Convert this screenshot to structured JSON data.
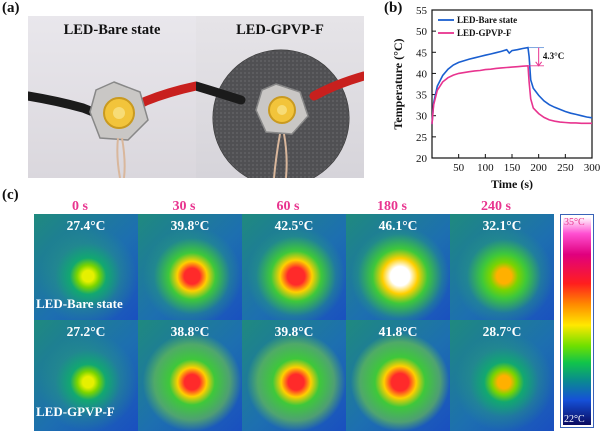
{
  "panel_a": {
    "label": "(a)",
    "left_title": "LED-Bare state",
    "right_title": "LED-GPVP-F"
  },
  "panel_b": {
    "label": "(b)",
    "annotation": "4.3°C"
  },
  "panel_c": {
    "label": "(c)",
    "times": [
      "0 s",
      "30 s",
      "60 s",
      "180 s",
      "240 s"
    ],
    "rows": [
      {
        "name": "LED-Bare state",
        "temps": [
          "27.4°C",
          "39.8°C",
          "42.5°C",
          "46.1°C",
          "32.1°C"
        ]
      },
      {
        "name": "LED-GPVP-F",
        "temps": [
          "27.2°C",
          "38.8°C",
          "39.8°C",
          "41.8°C",
          "28.7°C"
        ]
      }
    ],
    "colorbar": {
      "max": "35°C",
      "min": "22°C"
    }
  },
  "chart_data": {
    "type": "line",
    "xlabel": "Time (s)",
    "ylabel": "Temperature (°C)",
    "xlim": [
      0,
      300
    ],
    "ylim": [
      20,
      55
    ],
    "xticks": [
      50,
      100,
      150,
      200,
      250,
      300
    ],
    "yticks": [
      20,
      25,
      30,
      35,
      40,
      45,
      50,
      55
    ],
    "legend_position": "top-left",
    "series": [
      {
        "name": "LED-Bare state",
        "color": "#1a5fd0",
        "x": [
          0,
          3,
          10,
          20,
          30,
          40,
          50,
          60,
          70,
          80,
          90,
          100,
          110,
          120,
          130,
          140,
          145,
          150,
          160,
          170,
          180,
          182,
          185,
          190,
          200,
          210,
          220,
          230,
          240,
          250,
          260,
          270,
          280,
          290,
          300
        ],
        "y": [
          28,
          33,
          37,
          39.5,
          41,
          42,
          42.6,
          43,
          43.4,
          43.7,
          44,
          44.3,
          44.6,
          44.9,
          45.2,
          45.6,
          44.8,
          45.4,
          45.6,
          45.9,
          46.1,
          44,
          38.5,
          36.5,
          34.8,
          33.5,
          32.6,
          32,
          31.5,
          31,
          30.6,
          30.3,
          30,
          29.7,
          29.5
        ]
      },
      {
        "name": "LED-GPVP-F",
        "color": "#e8348f",
        "x": [
          0,
          3,
          10,
          20,
          30,
          40,
          50,
          60,
          70,
          80,
          90,
          100,
          110,
          120,
          130,
          140,
          150,
          160,
          170,
          180,
          182,
          185,
          190,
          200,
          210,
          220,
          230,
          240,
          250,
          260,
          270,
          280,
          290,
          300
        ],
        "y": [
          28,
          32.5,
          36,
          38,
          39,
          39.6,
          40,
          40.2,
          40.4,
          40.6,
          40.7,
          40.9,
          41,
          41.2,
          41.3,
          41.4,
          41.5,
          41.6,
          41.7,
          41.8,
          38,
          34,
          31.8,
          30.5,
          29.6,
          29,
          28.7,
          28.5,
          28.4,
          28.3,
          28.3,
          28.2,
          28.2,
          28.2
        ]
      }
    ]
  }
}
